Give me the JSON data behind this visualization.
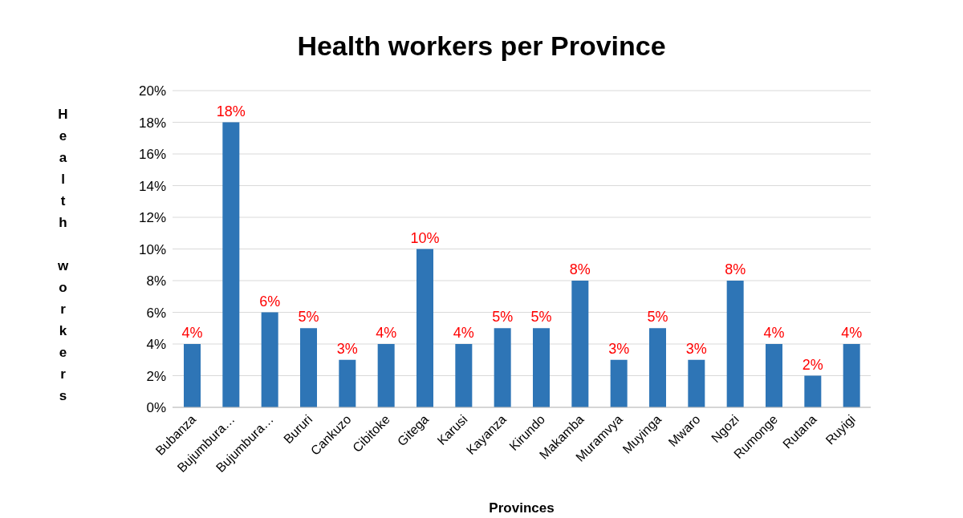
{
  "chart_data": {
    "type": "bar",
    "title": "Health workers per Province",
    "xlabel": "Provinces",
    "ylabel": "Health workers",
    "categories": [
      "Bubanza",
      "Bujumbura…",
      "Bujumbura…",
      "Bururi",
      "Cankuzo",
      "Cibitoke",
      "Gitega",
      "Karusi",
      "Kayanza",
      "Kirundo",
      "Makamba",
      "Muramvya",
      "Muyinga",
      "Mwaro",
      "Ngozi",
      "Rumonge",
      "Rutana",
      "Ruyigi"
    ],
    "values": [
      4,
      18,
      6,
      5,
      3,
      4,
      10,
      4,
      5,
      5,
      8,
      3,
      5,
      3,
      8,
      4,
      2,
      4
    ],
    "value_labels": [
      "4%",
      "18%",
      "6%",
      "5%",
      "3%",
      "4%",
      "10%",
      "4%",
      "5%",
      "5%",
      "8%",
      "3%",
      "5%",
      "3%",
      "8%",
      "4%",
      "2%",
      "4%"
    ],
    "color": "#2e75b6",
    "ylim": [
      0,
      20
    ],
    "yticks": [
      {
        "value": 0,
        "label": "0%"
      },
      {
        "value": 2,
        "label": "2%"
      },
      {
        "value": 4,
        "label": "4%"
      },
      {
        "value": 6,
        "label": "6%"
      },
      {
        "value": 8,
        "label": "8%"
      },
      {
        "value": 10,
        "label": "10%"
      },
      {
        "value": 12,
        "label": "12%"
      },
      {
        "value": 14,
        "label": "14%"
      },
      {
        "value": 16,
        "label": "16%"
      },
      {
        "value": 18,
        "label": "18%"
      },
      {
        "value": 20,
        "label": "20%"
      }
    ],
    "grid": "y"
  }
}
